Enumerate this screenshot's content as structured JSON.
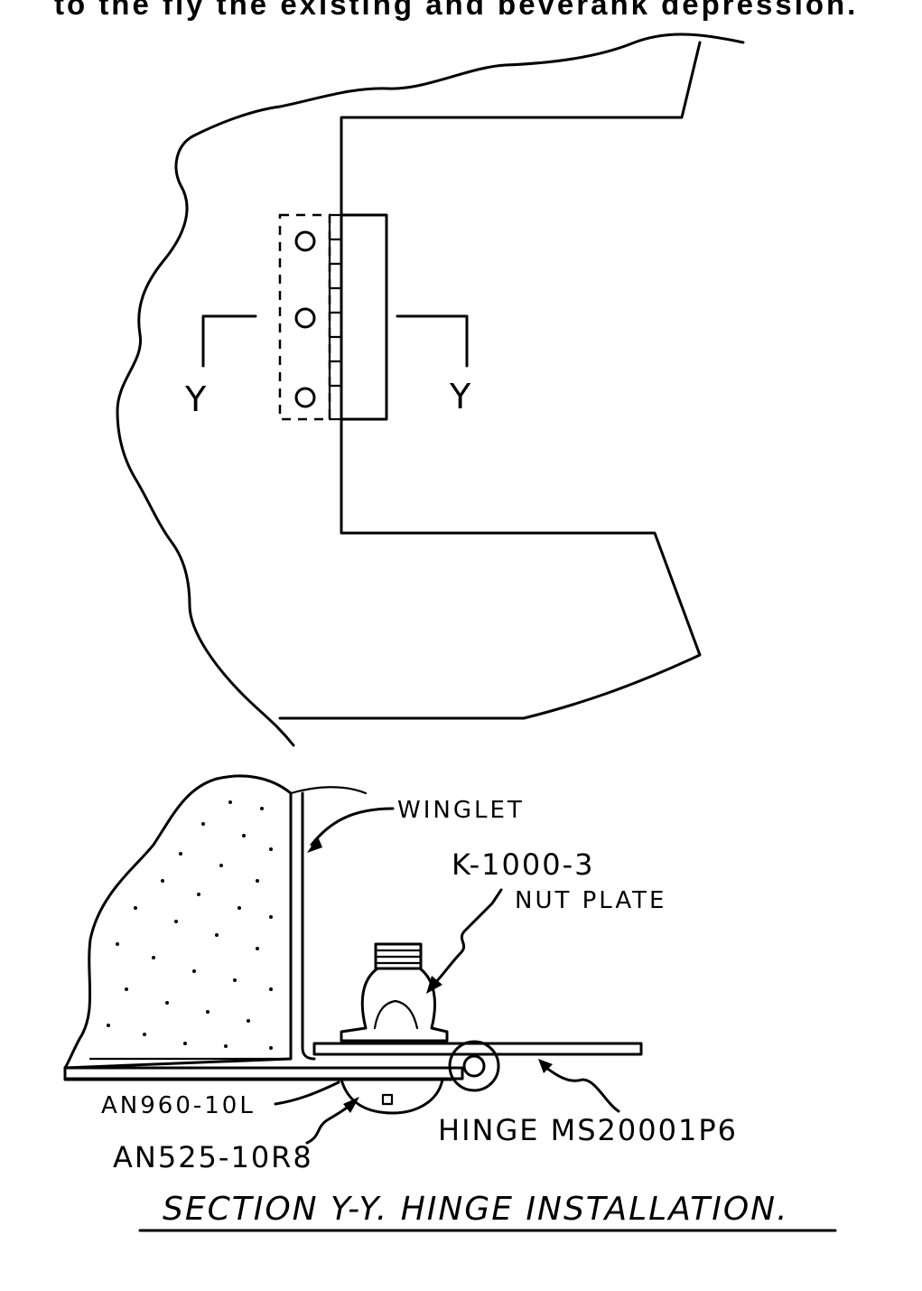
{
  "header": {
    "cut_text": "to the fly the existing and beverank depression."
  },
  "plan_view": {
    "section_mark_left": "Y",
    "section_mark_right": "Y"
  },
  "section_view": {
    "labels": {
      "winglet": "WINGLET",
      "part_k1000": "K-1000-3",
      "nut_plate": "NUT PLATE",
      "an960": "AN960-10L",
      "an525": "AN525-10R8",
      "hinge": "HINGE MS20001P6"
    },
    "caption": "SECTION Y-Y. HINGE INSTALLATION."
  }
}
